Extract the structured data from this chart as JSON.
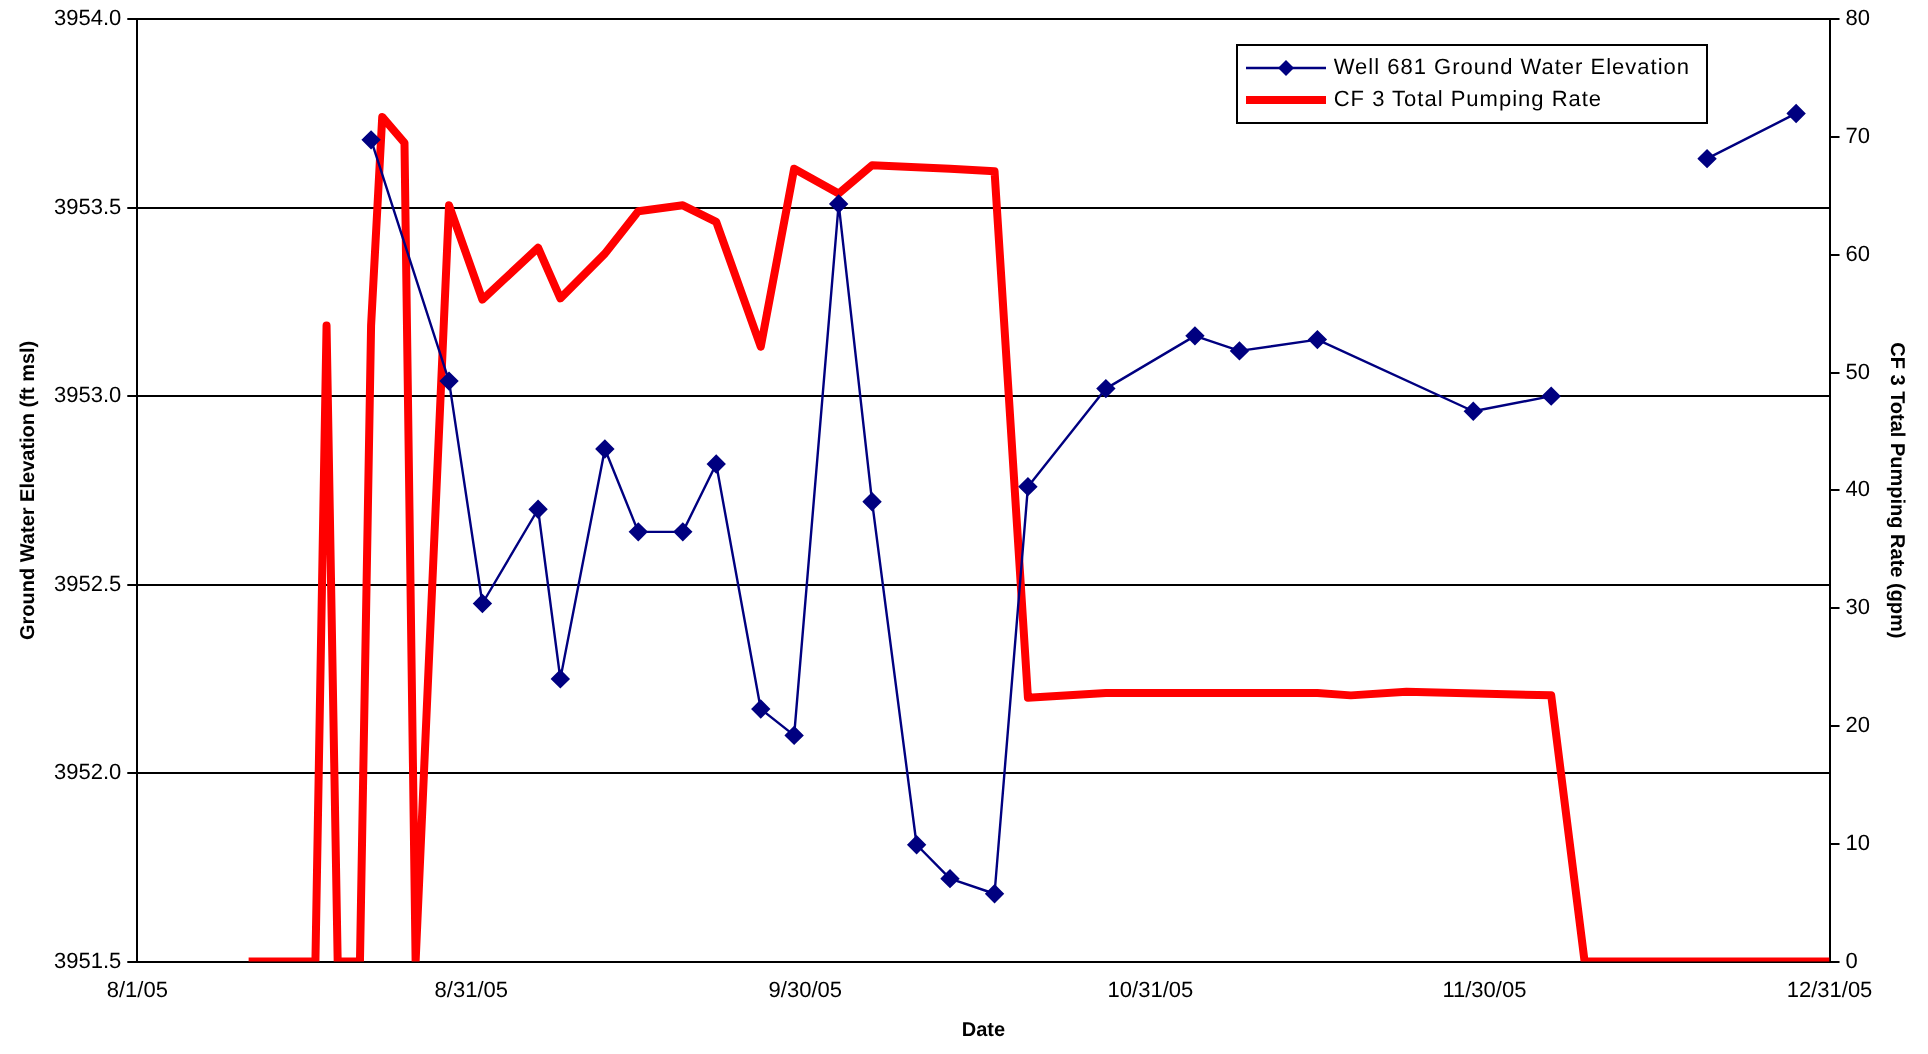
{
  "chart_data": {
    "type": "line",
    "xlabel": "Date",
    "ylabel": "Ground Water Elevation (ft msl)",
    "y2label": "CF 3 Total Pumping Rate (gpm)",
    "xlim": [
      "2005-08-01",
      "2005-12-31"
    ],
    "xticks": [
      {
        "value": "2005-08-01",
        "label": "8/1/05"
      },
      {
        "value": "2005-08-31",
        "label": "8/31/05"
      },
      {
        "value": "2005-09-30",
        "label": "9/30/05"
      },
      {
        "value": "2005-10-31",
        "label": "10/31/05"
      },
      {
        "value": "2005-11-30",
        "label": "11/30/05"
      },
      {
        "value": "2005-12-31",
        "label": "12/31/05"
      }
    ],
    "ylim": [
      3951.5,
      3954.0
    ],
    "yticks": [
      {
        "value": 3951.5,
        "label": "3951.5"
      },
      {
        "value": 3952,
        "label": "3952.0"
      },
      {
        "value": 3952.5,
        "label": "3952.5"
      },
      {
        "value": 3953,
        "label": "3953.0"
      },
      {
        "value": 3953.5,
        "label": "3953.5"
      },
      {
        "value": 3954,
        "label": "3954.0"
      }
    ],
    "y2lim": [
      0,
      80
    ],
    "y2ticks": [
      0,
      10,
      20,
      30,
      40,
      50,
      60,
      70,
      80
    ],
    "grid": "y",
    "legend": "top right",
    "series": [
      {
        "name": "Well 681 Ground Water Elevation",
        "color": "#000080",
        "marker": "diamond",
        "x": [
          "2005-08-22",
          "2005-08-29",
          "2005-09-01",
          "2005-09-06",
          "2005-09-08",
          "2005-09-12",
          "2005-09-15",
          "2005-09-19",
          "2005-09-22",
          "2005-09-26",
          "2005-09-29",
          "2005-10-03",
          "2005-10-06",
          "2005-10-10",
          "2005-10-13",
          "2005-10-17",
          "2005-10-20",
          "2005-10-27",
          "2005-11-04",
          "2005-11-08",
          "2005-11-15",
          "2005-11-29",
          "2005-12-06",
          "2005-12-13",
          "2005-12-20",
          "2005-12-28"
        ],
        "values": [
          3953.68,
          3953.04,
          3952.45,
          3952.7,
          3952.25,
          3952.86,
          3952.64,
          3952.64,
          3952.82,
          3952.17,
          3952.1,
          3953.51,
          3952.72,
          3951.81,
          3951.72,
          3951.68,
          3952.76,
          3953.02,
          3953.16,
          3953.12,
          3953.15,
          3952.96,
          3953.0,
          null,
          3953.63,
          3953.75
        ]
      },
      {
        "name": "CF 3 Total Pumping Rate",
        "color": "#ff0000",
        "marker": "none",
        "axis": "y2",
        "x": [
          "2005-08-11",
          "2005-08-17",
          "2005-08-18",
          "2005-08-19",
          "2005-08-21",
          "2005-08-22",
          "2005-08-23",
          "2005-08-25",
          "2005-08-26",
          "2005-08-29",
          "2005-09-01",
          "2005-09-06",
          "2005-09-08",
          "2005-09-12",
          "2005-09-15",
          "2005-09-19",
          "2005-09-22",
          "2005-09-26",
          "2005-09-29",
          "2005-10-03",
          "2005-10-06",
          "2005-10-13",
          "2005-10-17",
          "2005-10-20",
          "2005-10-27",
          "2005-11-04",
          "2005-11-15",
          "2005-11-18",
          "2005-11-23",
          "2005-12-06",
          "2005-12-09",
          "2005-12-31"
        ],
        "values": [
          0,
          0,
          54,
          0,
          0,
          54,
          71.7,
          69.5,
          0,
          64.2,
          56.2,
          60.6,
          56.3,
          60.1,
          63.7,
          64.2,
          62.8,
          52.2,
          67.3,
          65.2,
          67.6,
          67.3,
          67.1,
          22.4,
          22.8,
          22.8,
          22.8,
          22.6,
          22.9,
          22.6,
          0,
          0
        ]
      }
    ]
  }
}
